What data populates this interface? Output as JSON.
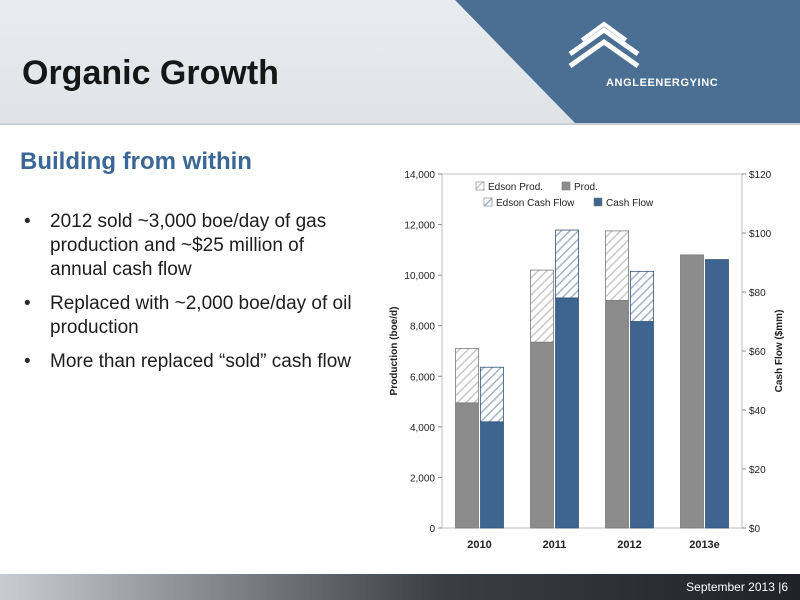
{
  "slide": {
    "title": "Organic Growth",
    "brand": "ANGLEENERGYINC",
    "subtitle": "Building from within",
    "bullets": [
      "2012 sold ~3,000 boe/day of gas production and ~$25 million of annual cash flow",
      "Replaced with ~2,000 boe/day of oil production",
      "More than replaced “sold” cash flow"
    ],
    "footer": "September 2013 |6",
    "colors": {
      "accent": "#3b6796",
      "header_blue": "#4a6f92"
    }
  },
  "chart_data": {
    "type": "bar",
    "categories": [
      "2010",
      "2011",
      "2012",
      "2013e"
    ],
    "ylabel_left": "Production (boe/d)",
    "ylabel_right": "Cash Flow ($mm)",
    "ylim_left": [
      0,
      14000
    ],
    "ylim_right": [
      0,
      120
    ],
    "yticks_left": [
      "0",
      "2,000",
      "4,000",
      "6,000",
      "8,000",
      "10,000",
      "12,000",
      "14,000"
    ],
    "yticks_right": [
      "$0",
      "$20",
      "$40",
      "$60",
      "$80",
      "$100",
      "$120"
    ],
    "legend": {
      "position": "top-center"
    },
    "series": [
      {
        "name": "Prod.",
        "axis": "left",
        "stack": "production",
        "color": "#8c8c8c",
        "pattern": "solid",
        "values": [
          4950,
          7350,
          9000,
          10800
        ]
      },
      {
        "name": "Edson Prod.",
        "axis": "left",
        "stack": "production",
        "color": "#c8c8c8",
        "pattern": "hatch",
        "values": [
          2150,
          2850,
          2750,
          0
        ]
      },
      {
        "name": "Cash Flow",
        "axis": "right",
        "stack": "cashflow",
        "color": "#3e6490",
        "pattern": "solid",
        "values": [
          36,
          78,
          70,
          91
        ]
      },
      {
        "name": "Edson Cash Flow",
        "axis": "right",
        "stack": "cashflow",
        "color": "#9fb3c9",
        "pattern": "hatch",
        "values": [
          18.5,
          23,
          17,
          0
        ]
      }
    ]
  }
}
